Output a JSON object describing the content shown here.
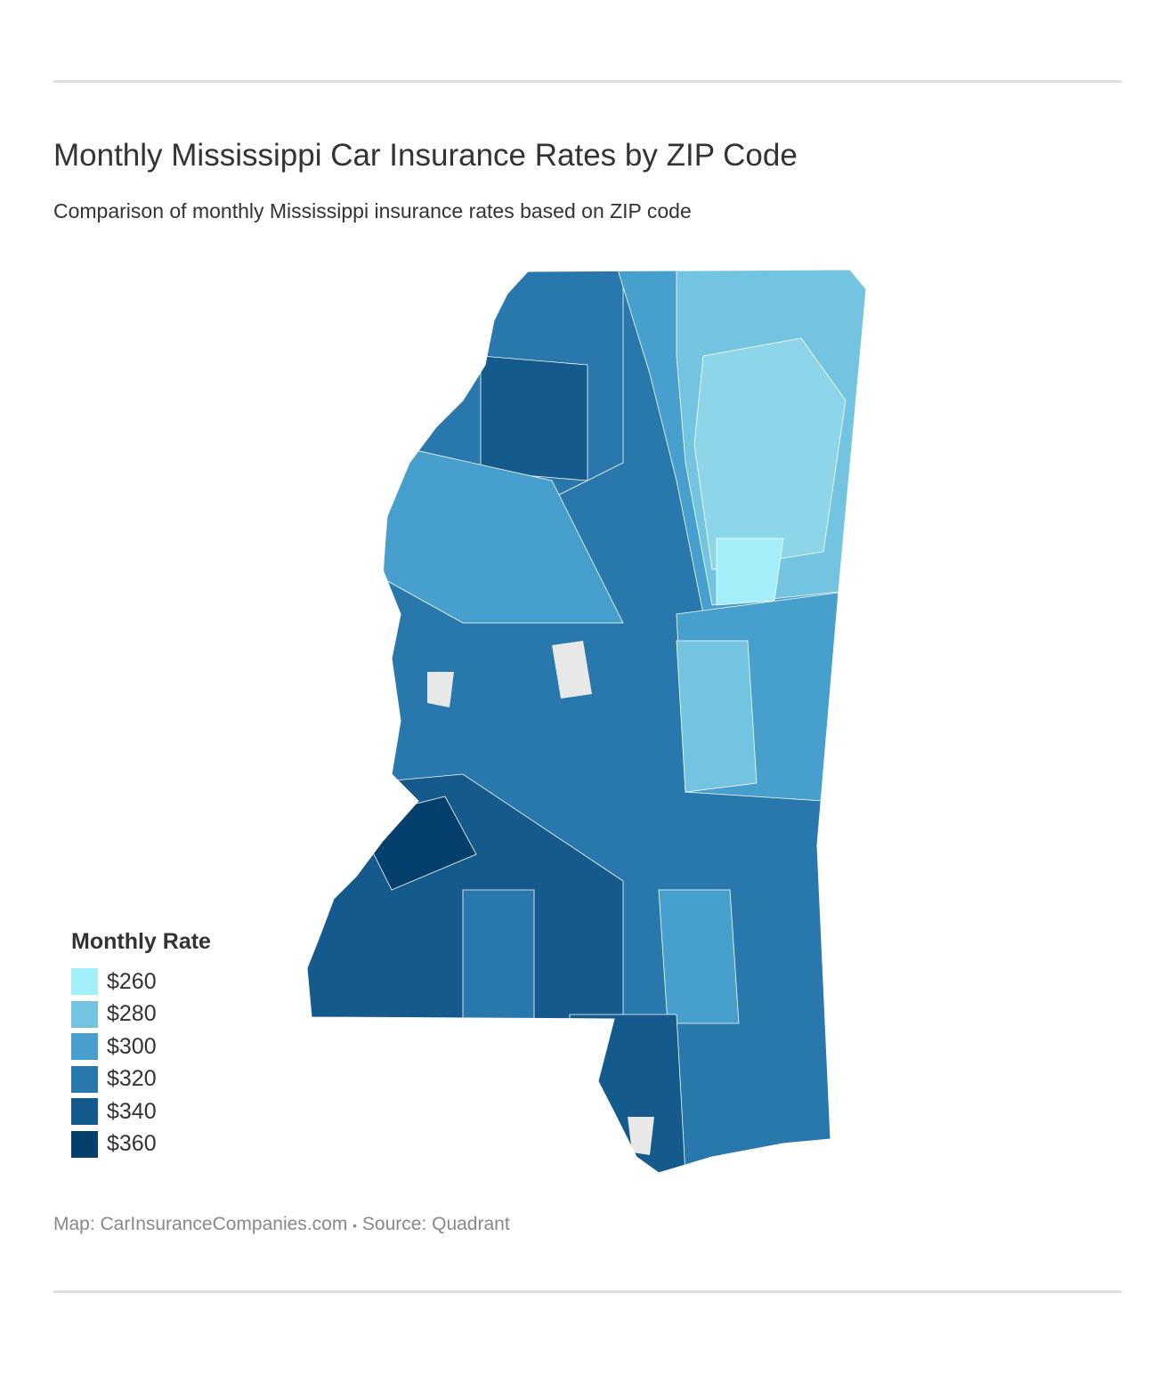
{
  "title": "Monthly Mississippi Car Insurance Rates by ZIP Code",
  "subtitle": "Comparison of monthly Mississippi insurance rates based on ZIP code",
  "legend": {
    "title": "Monthly Rate",
    "items": [
      {
        "label": "$260",
        "color": "#a3eff9"
      },
      {
        "label": "$280",
        "color": "#72c4e0"
      },
      {
        "label": "$300",
        "color": "#469fcc"
      },
      {
        "label": "$320",
        "color": "#2878ae"
      },
      {
        "label": "$340",
        "color": "#145a8c"
      },
      {
        "label": "$360",
        "color": "#053f6c"
      }
    ]
  },
  "no_data_color": "#e8e8e8",
  "footer": {
    "map_credit": "Map: CarInsuranceCompanies.com",
    "separator": "•",
    "source": "Source: Quadrant"
  }
}
